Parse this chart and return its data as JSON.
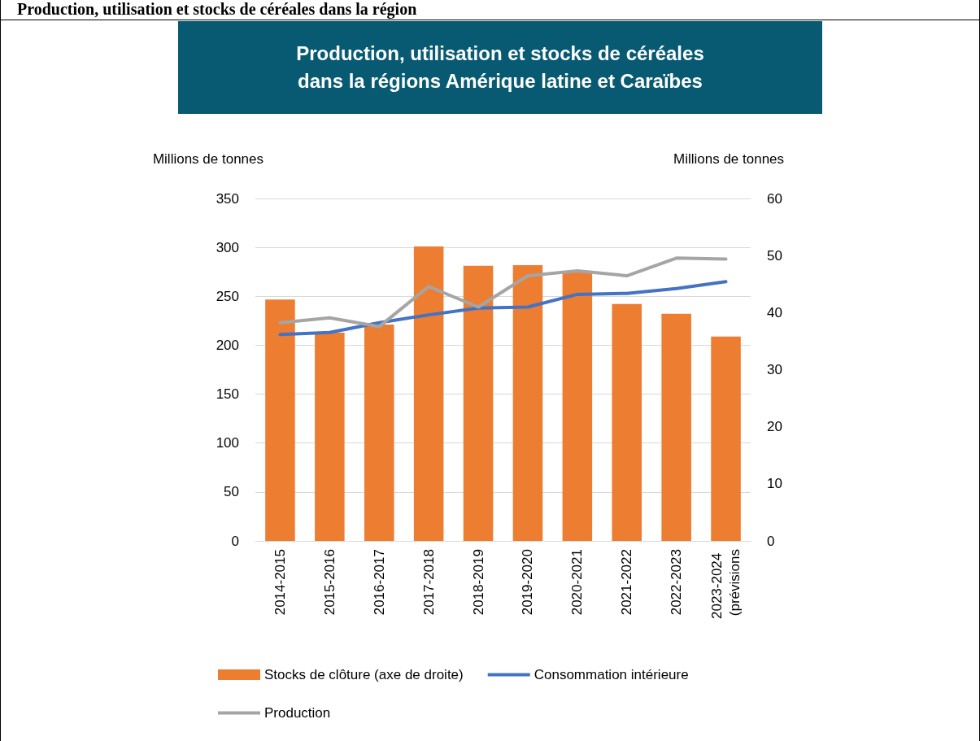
{
  "chart_data": {
    "type": "bar",
    "title": "Production, utilisation et stocks de céréales dans la régions Amérique latine et Caraïbes",
    "annotations": [
      "Production, utilisation et stocks de céréales dans la région"
    ],
    "ylabel": "Millions de tonnes",
    "y2label": "Millions de tonnes",
    "categories": [
      "2014-2015",
      "2015-2016",
      "2016-2017",
      "2017-2018",
      "2018-2019",
      "2019-2020",
      "2020-2021",
      "2021-2022",
      "2022-2023",
      "2023-2024 (prévisions"
    ],
    "series": [
      {
        "name": "Stocks de clôture (axe de droite)",
        "axis": "y2",
        "color": "#ed7d31",
        "values": [
          42.3,
          36.5,
          37.9,
          51.6,
          48.2,
          48.3,
          47.1,
          41.5,
          39.8,
          35.8
        ]
      },
      {
        "name": "Consommation intérieure",
        "type": "line",
        "color": "#4472c4",
        "values": [
          211,
          213,
          223,
          231,
          238,
          239,
          252,
          253,
          258,
          265
        ]
      },
      {
        "name": "Production",
        "type": "line",
        "color": "#a5a5a5",
        "values": [
          223,
          228,
          219,
          260,
          239,
          271,
          276,
          271,
          289,
          288
        ]
      }
    ],
    "ylim": [
      0,
      350
    ],
    "yticks": [
      0,
      50,
      100,
      150,
      200,
      250,
      300,
      350
    ],
    "y2lim": [
      0,
      60
    ],
    "y2ticks": [
      0,
      10,
      20,
      30,
      40,
      50,
      60
    ],
    "grid": "y",
    "legend": "bottom",
    "marker": "none",
    "line_style": "solid"
  }
}
